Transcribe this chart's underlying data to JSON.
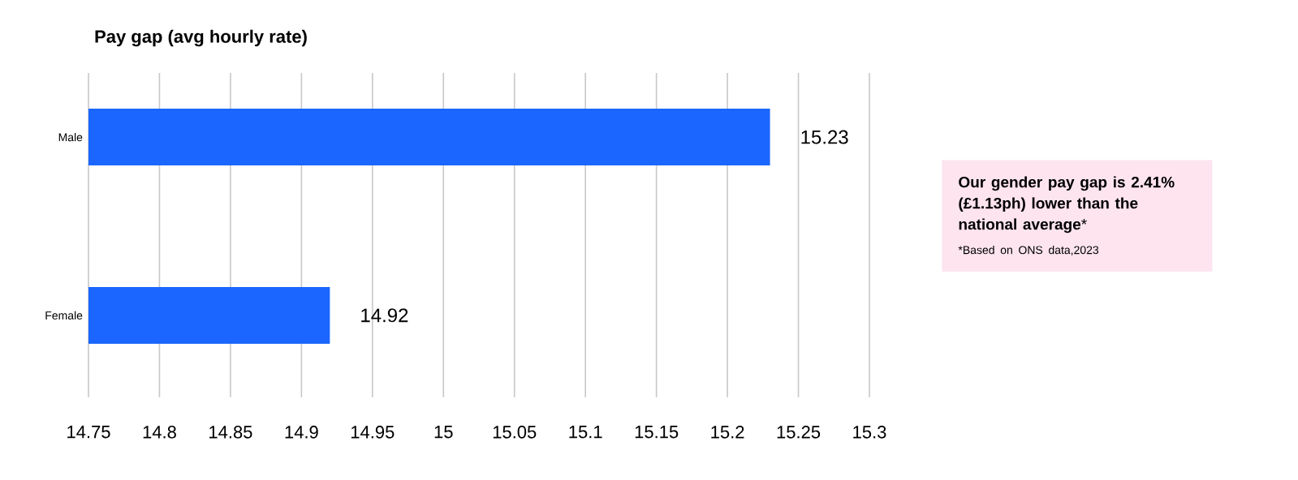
{
  "chart_data": {
    "type": "bar",
    "orientation": "horizontal",
    "title": "Pay gap (avg hourly rate)",
    "categories": [
      "Male",
      "Female"
    ],
    "values": [
      15.23,
      14.92
    ],
    "color": "#1a66ff",
    "xlim": [
      14.75,
      15.3
    ],
    "xticks": [
      14.75,
      14.8,
      14.85,
      14.9,
      14.95,
      15,
      15.05,
      15.1,
      15.15,
      15.2,
      15.25,
      15.3
    ],
    "grid": "x",
    "data_labels": true,
    "annotations": [
      "**Our gender pay gap is 2.41% (£1.13ph) lower than the national average***",
      "*Based on ONS data,2023"
    ]
  }
}
